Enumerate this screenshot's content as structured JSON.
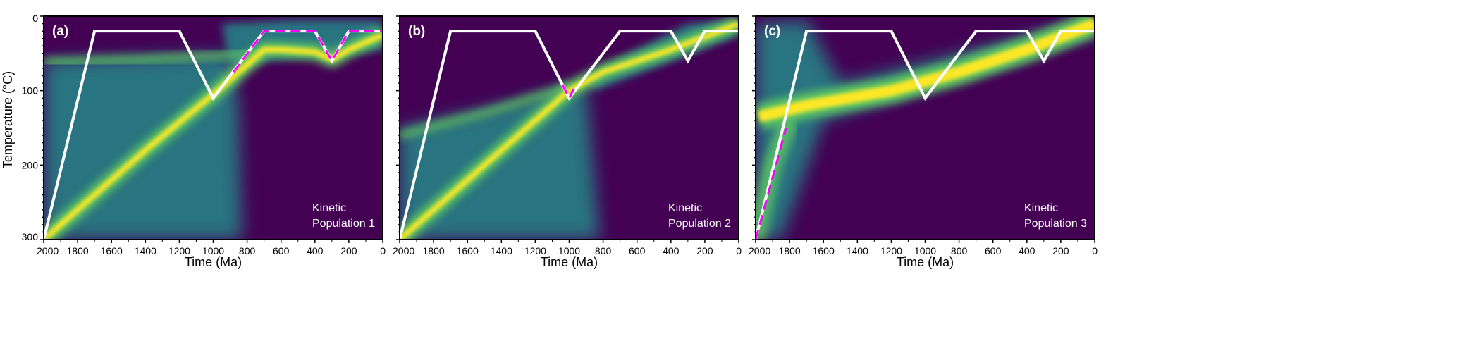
{
  "chart_data": [
    {
      "type": "heatmap",
      "panel_label": "(a)",
      "annotation": [
        "Kinetic",
        "Population 1"
      ],
      "xlabel": "Time (Ma)",
      "ylabel": "Temperature (°C)",
      "xlim": [
        2000,
        0
      ],
      "ylim": [
        300,
        0
      ],
      "xticks": [
        2000,
        1800,
        1600,
        1400,
        1200,
        1000,
        800,
        600,
        400,
        200,
        0
      ],
      "yticks": [
        0,
        100,
        200,
        300
      ],
      "true_path": {
        "x": [
          2000,
          1700,
          1200,
          1000,
          700,
          400,
          300,
          200,
          0
        ],
        "y": [
          300,
          20,
          20,
          110,
          20,
          20,
          60,
          20,
          20
        ]
      },
      "recovered_path_dashed": {
        "x": [
          880,
          700,
          400,
          300,
          200,
          0
        ],
        "y": [
          75,
          20,
          20,
          60,
          20,
          20
        ]
      },
      "density_band": {
        "x": [
          2000,
          1400,
          1000,
          800,
          700,
          600,
          400,
          300,
          200,
          0
        ],
        "y": [
          300,
          180,
          105,
          65,
          45,
          45,
          48,
          58,
          45,
          25
        ]
      },
      "secondary_band": {
        "x": [
          2000,
          1400,
          900,
          700
        ],
        "y": [
          62,
          58,
          52,
          48
        ]
      }
    },
    {
      "type": "heatmap",
      "panel_label": "(b)",
      "annotation": [
        "Kinetic",
        "Population 2"
      ],
      "xlabel": "Time (Ma)",
      "xlim": [
        2000,
        0
      ],
      "ylim": [
        300,
        0
      ],
      "xticks": [
        2000,
        1800,
        1600,
        1400,
        1200,
        1000,
        800,
        600,
        400,
        200,
        0
      ],
      "true_path": {
        "x": [
          2000,
          1700,
          1200,
          1000,
          700,
          400,
          300,
          200,
          0
        ],
        "y": [
          300,
          20,
          20,
          110,
          20,
          20,
          60,
          20,
          20
        ]
      },
      "recovered_path_dashed": {
        "x": [
          1040,
          1000,
          960
        ],
        "y": [
          92,
          110,
          92
        ]
      },
      "density_band": {
        "x": [
          2000,
          1400,
          1000,
          800,
          400,
          0
        ],
        "y": [
          300,
          180,
          100,
          75,
          45,
          10
        ]
      },
      "secondary_band": {
        "x": [
          2000,
          1500,
          1000
        ],
        "y": [
          160,
          130,
          95
        ]
      }
    },
    {
      "type": "heatmap",
      "panel_label": "(c)",
      "annotation": [
        "Kinetic",
        "Population 3"
      ],
      "xlabel": "Time (Ma)",
      "xlim": [
        2000,
        0
      ],
      "ylim": [
        300,
        0
      ],
      "xticks": [
        2000,
        1800,
        1600,
        1400,
        1200,
        1000,
        800,
        600,
        400,
        200,
        0
      ],
      "true_path": {
        "x": [
          2000,
          1700,
          1200,
          1000,
          700,
          400,
          300,
          200,
          0
        ],
        "y": [
          300,
          20,
          20,
          110,
          20,
          20,
          60,
          20,
          20
        ]
      },
      "recovered_path_dashed": {
        "x": [
          2000,
          1820
        ],
        "y": [
          300,
          150
        ]
      },
      "density_band": {
        "x": [
          1980,
          1700,
          1200,
          800,
          400,
          0
        ],
        "y": [
          135,
          120,
          100,
          75,
          45,
          10
        ]
      },
      "secondary_band": {
        "x": [
          2000,
          1900,
          1800
        ],
        "y": [
          300,
          200,
          140
        ]
      }
    }
  ],
  "colors": {
    "background": "#440154",
    "teal": "#21918c",
    "green": "#5ec962",
    "yellow": "#fde725",
    "path": "#ffffff",
    "dashed": "#ff00ff"
  }
}
